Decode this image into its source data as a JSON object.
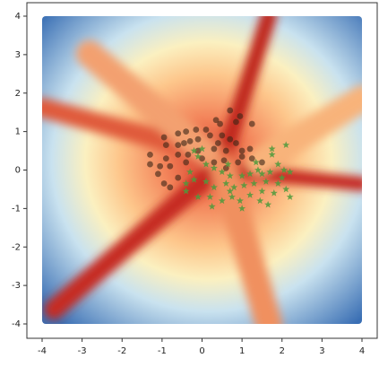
{
  "chart_data": {
    "type": "scatter",
    "xlim": [
      -4,
      4
    ],
    "ylim": [
      -4,
      4
    ],
    "xticks": [
      -4,
      -3,
      -2,
      -1,
      0,
      1,
      2,
      3,
      4
    ],
    "yticks": [
      -4,
      -3,
      -2,
      -1,
      0,
      1,
      2,
      3,
      4
    ],
    "series": [
      {
        "color": "#3b2416",
        "marker": "o",
        "x": [
          0.7,
          0.95,
          0.85,
          0.35,
          0.45,
          0.1,
          -0.15,
          -0.4,
          -0.6,
          -0.95,
          -0.9,
          -0.6,
          -0.45,
          -0.3,
          -0.1,
          0.2,
          0.5,
          0.4,
          0.7,
          0.85,
          1.2,
          1.25,
          1.0,
          0.6,
          0.3,
          -0.1,
          -0.35,
          -0.6,
          -0.9,
          -1.3,
          -1.3,
          -1.05,
          -0.8,
          -0.95,
          -0.8,
          -0.6,
          -0.4,
          0.0,
          0.3,
          0.55,
          1.0,
          1.25,
          0.6,
          1.5,
          0.9,
          -1.1
        ],
        "values": [
          1.55,
          1.4,
          1.25,
          1.3,
          1.2,
          1.05,
          1.05,
          1.0,
          0.95,
          0.85,
          0.65,
          0.65,
          0.7,
          0.75,
          0.8,
          0.9,
          0.9,
          0.7,
          0.8,
          0.7,
          0.55,
          1.2,
          0.5,
          0.5,
          0.55,
          0.5,
          0.4,
          0.4,
          0.3,
          0.4,
          0.15,
          0.1,
          0.1,
          -0.35,
          -0.45,
          -0.2,
          0.2,
          0.3,
          0.2,
          0.25,
          0.35,
          0.3,
          0.05,
          0.2,
          0.2,
          -0.1
        ]
      },
      {
        "color": "#4e9a3c",
        "marker": "*",
        "x": [
          2.1,
          1.75,
          1.75,
          1.9,
          2.05,
          2.2,
          1.7,
          1.5,
          1.4,
          1.2,
          1.0,
          0.7,
          0.5,
          0.3,
          0.1,
          -0.1,
          -0.2,
          0.0,
          -0.3,
          -0.2,
          -0.4,
          0.1,
          0.3,
          0.6,
          0.8,
          1.05,
          1.3,
          1.6,
          1.9,
          2.1,
          2.2,
          1.8,
          1.5,
          1.2,
          1.45,
          0.95,
          0.75,
          0.5,
          0.2,
          -0.1,
          -0.4,
          0.7,
          1.0,
          0.25,
          1.65,
          0.65,
          1.35,
          2.0
        ],
        "values": [
          0.65,
          0.55,
          0.4,
          0.15,
          0.0,
          -0.05,
          -0.05,
          -0.1,
          0.0,
          -0.1,
          -0.15,
          -0.15,
          -0.05,
          0.05,
          0.15,
          0.35,
          0.5,
          0.55,
          -0.05,
          -0.25,
          -0.35,
          -0.3,
          -0.45,
          -0.35,
          -0.45,
          -0.4,
          -0.35,
          -0.3,
          -0.35,
          -0.5,
          -0.7,
          -0.6,
          -0.55,
          -0.65,
          -0.8,
          -0.8,
          -0.7,
          -0.8,
          -0.7,
          -0.7,
          -0.55,
          -0.55,
          -1.0,
          -0.95,
          -0.9,
          0.15,
          0.2,
          -0.2
        ]
      }
    ]
  }
}
